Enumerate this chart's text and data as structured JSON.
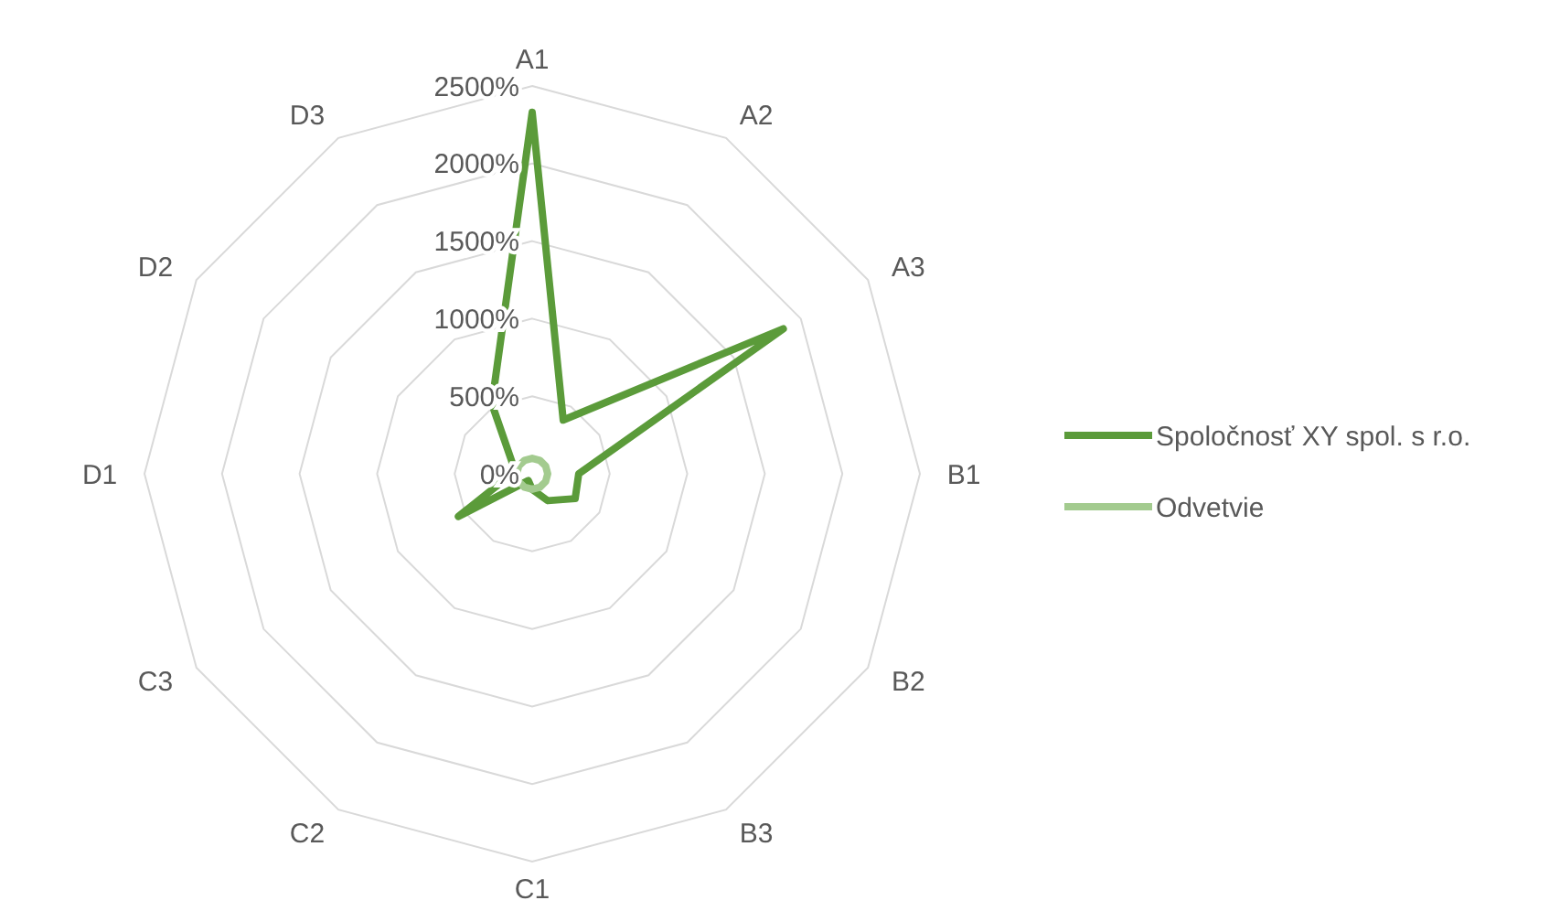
{
  "chart_data": {
    "type": "radar",
    "categories": [
      "A1",
      "A2",
      "A3",
      "B1",
      "B2",
      "B3",
      "C1",
      "C2",
      "C3",
      "D1",
      "D2",
      "D3"
    ],
    "series": [
      {
        "name": "Spoločnosť XY spol. s r.o.",
        "color": "#5b9b3a",
        "values": [
          2330,
          400,
          1870,
          300,
          320,
          200,
          100,
          50,
          550,
          130,
          150,
          520
        ]
      },
      {
        "name": "Odvetvie",
        "color": "#a3cb8f",
        "values": [
          100,
          100,
          100,
          100,
          100,
          100,
          100,
          100,
          100,
          100,
          100,
          100
        ]
      }
    ],
    "ylim": [
      0,
      2500
    ],
    "yticks": [
      {
        "value": 0,
        "label": "0%"
      },
      {
        "value": 500,
        "label": "500%"
      },
      {
        "value": 1000,
        "label": "1000%"
      },
      {
        "value": 1500,
        "label": "1500%"
      },
      {
        "value": 2000,
        "label": "2000%"
      },
      {
        "value": 2500,
        "label": "2500%"
      }
    ],
    "grid": true,
    "legend": "right"
  }
}
